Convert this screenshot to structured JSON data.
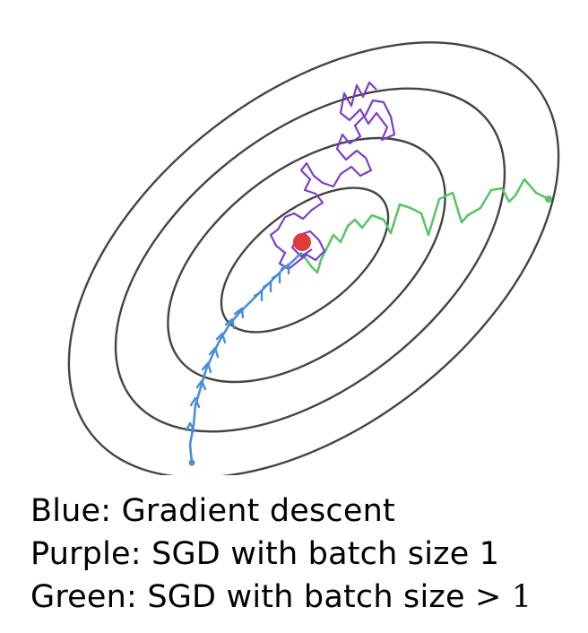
{
  "colors": {
    "contour": "#444444",
    "gradient_descent": "#4a8fd4",
    "sgd_batch_1": "#7b3fc4",
    "sgd_batch_gt_1": "#5cc46a",
    "minimum": "#e03a3a"
  },
  "legend": {
    "blue": {
      "prefix": "Blue: ",
      "label": "Gradient descent"
    },
    "purple": {
      "prefix": "Purple: ",
      "label": "SGD with batch size 1"
    },
    "green": {
      "prefix": "Green: ",
      "label": "SGD with batch size ",
      "math": "> 1"
    }
  }
}
